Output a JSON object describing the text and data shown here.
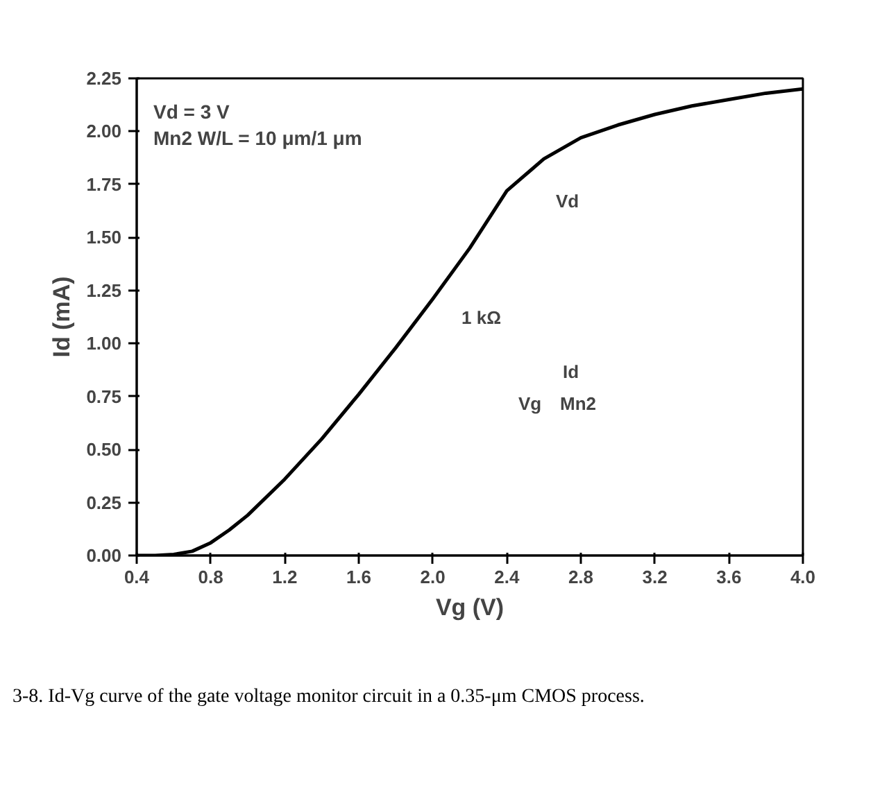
{
  "chart_data": {
    "type": "line",
    "xlabel": "Vg (V)",
    "ylabel": "Id (mA)",
    "x": [
      0.4,
      0.5,
      0.6,
      0.7,
      0.8,
      0.9,
      1.0,
      1.2,
      1.4,
      1.6,
      1.8,
      2.0,
      2.2,
      2.4,
      2.6,
      2.8,
      3.0,
      3.2,
      3.4,
      3.6,
      3.8,
      4.0
    ],
    "series": [
      {
        "color": "#000000",
        "values": [
          0.0,
          0.0,
          0.005,
          0.02,
          0.06,
          0.12,
          0.19,
          0.36,
          0.55,
          0.76,
          0.98,
          1.21,
          1.45,
          1.72,
          1.87,
          1.97,
          2.03,
          2.08,
          2.12,
          2.15,
          2.18,
          2.2
        ]
      }
    ],
    "xlim": [
      0.4,
      4.0
    ],
    "xticks": [
      0.4,
      0.8,
      1.2,
      1.6,
      {
        "value": 2,
        "label": "2.0"
      },
      2.4,
      2.8,
      3.2,
      3.6,
      {
        "value": 4,
        "label": "4.0"
      }
    ],
    "ylim": [
      0.0,
      2.25
    ],
    "yticks": [
      {
        "value": 0,
        "label": "0.00"
      },
      {
        "value": 0.25,
        "label": "0.25"
      },
      {
        "value": 0.5,
        "label": "0.50"
      },
      {
        "value": 0.75,
        "label": "0.75"
      },
      {
        "value": 1,
        "label": "1.00"
      },
      {
        "value": 1.25,
        "label": "1.25"
      },
      {
        "value": 1.5,
        "label": "1.50"
      },
      {
        "value": 1.75,
        "label": "1.75"
      },
      {
        "value": 2,
        "label": "2.00"
      },
      {
        "value": 2.25,
        "label": "2.25"
      }
    ],
    "grid": false,
    "marker": "none",
    "line_style": "solid",
    "annotations": [
      "Vd = 3 V",
      "Mn2 W/L = 10 μm/1 μm",
      "Vd",
      "1 kΩ",
      "Id",
      "Vg",
      "Mn2",
      "3-8.    Id-Vg curve of the gate voltage monitor circuit in a 0.35-μm CMOS process."
    ]
  }
}
